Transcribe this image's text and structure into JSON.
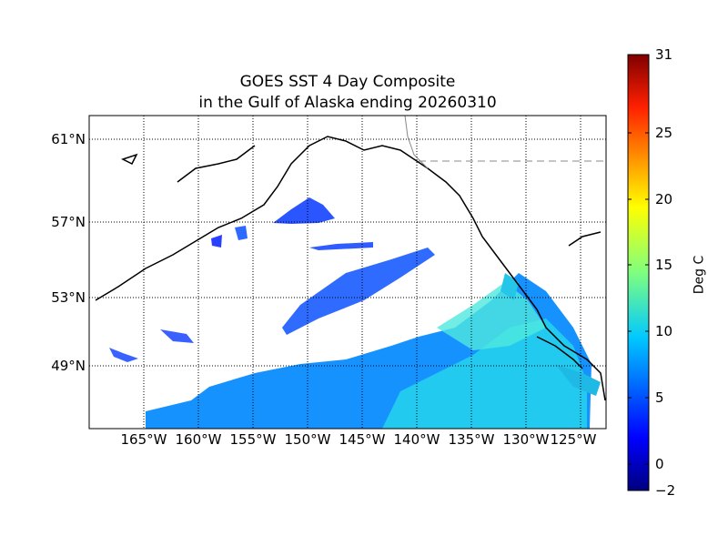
{
  "title": {
    "line1": "GOES SST 4 Day Composite",
    "line2": "in the Gulf of Alaska ending 20260310"
  },
  "map": {
    "lat_labels": [
      "61°N",
      "57°N",
      "53°N",
      "49°N"
    ],
    "lon_labels": [
      "165°W",
      "160°W",
      "155°W",
      "150°W",
      "145°W",
      "140°W",
      "135°W",
      "130°W",
      "125°W"
    ],
    "projection": "Mercator",
    "gridlines": true
  },
  "colorbar": {
    "label": "Deg C",
    "ticks": [
      "31",
      "25",
      "20",
      "15",
      "10",
      "5",
      "0",
      "−2"
    ],
    "min": -2,
    "max": 31,
    "colormap": "jet"
  },
  "colors": {
    "cold": "#1f3fff",
    "medium": "#0a8cff",
    "warm": "#33e0e6",
    "land": "#ffffff",
    "coastline": "#000000"
  }
}
